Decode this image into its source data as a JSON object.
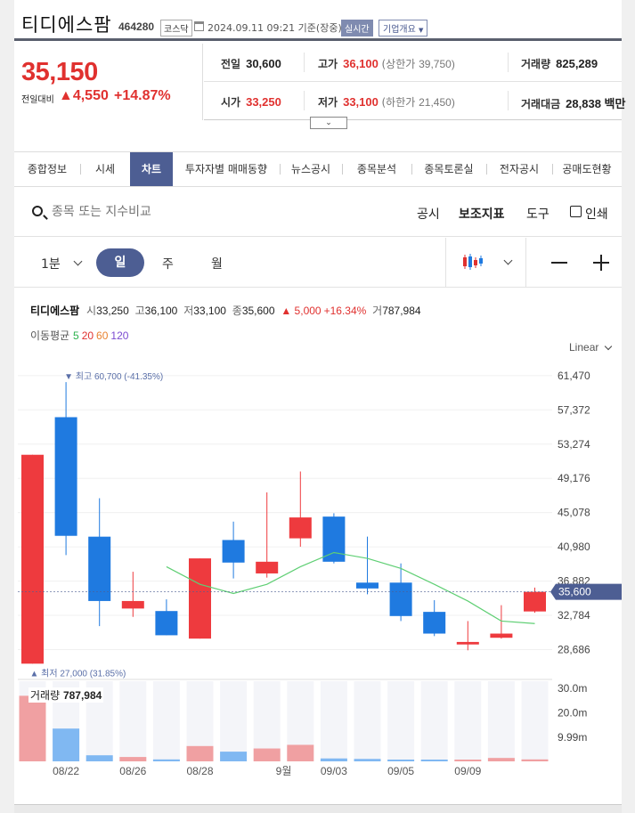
{
  "header": {
    "name": "티디에스팜",
    "code": "464280",
    "market": "코스닥",
    "datetime": "2024.09.11 09:21 기준(장중)",
    "realtime": "실시간",
    "overview": "기업개요"
  },
  "quote": {
    "price": "35,150",
    "change_label": "전일대비",
    "change": "▲4,550",
    "change_pct": "+14.87%"
  },
  "stats": {
    "prev": {
      "label": "전일",
      "value": "30,600"
    },
    "high": {
      "label": "고가",
      "value": "36,100",
      "sub_label": "(상한가",
      "sub_value": "39,750)"
    },
    "volume": {
      "label": "거래량",
      "value": "825,289"
    },
    "open": {
      "label": "시가",
      "value": "33,250"
    },
    "low": {
      "label": "저가",
      "value": "33,100",
      "sub_label": "(하한가",
      "sub_value": "21,450)"
    },
    "amount": {
      "label": "거래대금",
      "value": "28,838 백만"
    }
  },
  "tabs": [
    "종합정보",
    "시세",
    "차트",
    "투자자별 매매동향",
    "뉴스공시",
    "종목분석",
    "종목토론실",
    "전자공시",
    "공매도현황"
  ],
  "active_tab": 2,
  "search": {
    "placeholder": "종목 또는 지수비교"
  },
  "tools": {
    "notice": "공시",
    "indicator": "보조지표",
    "tool": "도구",
    "print": "인쇄"
  },
  "period": {
    "minute": "1분",
    "day": "일",
    "week": "주",
    "month": "월"
  },
  "chart_info": {
    "name": "티디에스팜",
    "open_k": "시",
    "open_v": "33,250",
    "high_k": "고",
    "high_v": "36,100",
    "low_k": "저",
    "low_v": "33,100",
    "close_k": "종",
    "close_v": "35,600",
    "change": "▲ 5,000",
    "change_pct": "+16.34%",
    "vol_k": "거",
    "vol_v": "787,984",
    "ma_label": "이동평균",
    "ma": [
      "5",
      "20",
      "60",
      "120"
    ],
    "ma_colors": [
      "#2bb24c",
      "#e0312f",
      "#e8822f",
      "#7b4bd1"
    ]
  },
  "scale_mode": "Linear",
  "volume_label": "거래량",
  "volume_value": "787,984",
  "colors": {
    "up": "#ee3a3e",
    "down": "#1f7ae0",
    "ma5": "#5fcf74",
    "accent": "#4d5e93"
  },
  "chart_data": {
    "type": "candlestick",
    "price_ticks": [
      "61,470",
      "57,372",
      "53,274",
      "49,176",
      "45,078",
      "40,980",
      "36,882",
      "32,784",
      "28,686"
    ],
    "volume_ticks": [
      "30.0m",
      "20.0m",
      "9.99m"
    ],
    "x_labels": [
      {
        "i": 1,
        "label": "08/22"
      },
      {
        "i": 3,
        "label": "08/26"
      },
      {
        "i": 5,
        "label": "08/28"
      },
      {
        "i": 7.5,
        "label": "9월"
      },
      {
        "i": 9,
        "label": "09/03"
      },
      {
        "i": 11,
        "label": "09/05"
      },
      {
        "i": 13,
        "label": "09/09"
      }
    ],
    "max_label": "▼ 최고 60,700 (-41.35%)",
    "min_label": "▲ 최저 27,000 (31.85%)",
    "current_label": "35,600",
    "current": 35600,
    "ylim": [
      26500,
      62200
    ],
    "candles": [
      {
        "o": 27000,
        "h": 52000,
        "l": 27000,
        "c": 52000,
        "v": 27.0
      },
      {
        "o": 56500,
        "h": 60700,
        "l": 40000,
        "c": 42300,
        "v": 13.5
      },
      {
        "o": 42200,
        "h": 46800,
        "l": 31500,
        "c": 34500,
        "v": 2.5
      },
      {
        "o": 33600,
        "h": 38000,
        "l": 32600,
        "c": 34500,
        "v": 1.8
      },
      {
        "o": 33300,
        "h": 34700,
        "l": 30400,
        "c": 30400,
        "v": 0.8
      },
      {
        "o": 30000,
        "h": 39600,
        "l": 30000,
        "c": 39600,
        "v": 6.3
      },
      {
        "o": 41800,
        "h": 44000,
        "l": 37200,
        "c": 39100,
        "v": 4.0
      },
      {
        "o": 37800,
        "h": 47500,
        "l": 37300,
        "c": 39200,
        "v": 5.3
      },
      {
        "o": 42000,
        "h": 50000,
        "l": 41000,
        "c": 44500,
        "v": 6.8
      },
      {
        "o": 44600,
        "h": 45000,
        "l": 39000,
        "c": 39200,
        "v": 1.2
      },
      {
        "o": 36700,
        "h": 42200,
        "l": 35300,
        "c": 36000,
        "v": 1.0
      },
      {
        "o": 36700,
        "h": 39000,
        "l": 32100,
        "c": 32700,
        "v": 0.6
      },
      {
        "o": 33200,
        "h": 34600,
        "l": 30300,
        "c": 30600,
        "v": 0.3
      },
      {
        "o": 29300,
        "h": 32100,
        "l": 28600,
        "c": 29600,
        "v": 0.2
      },
      {
        "o": 30100,
        "h": 34000,
        "l": 30000,
        "c": 30600,
        "v": 1.4
      },
      {
        "o": 33250,
        "h": 36100,
        "l": 33100,
        "c": 35600,
        "v": 0.8
      }
    ],
    "ma5": [
      null,
      null,
      null,
      null,
      38600,
      36500,
      35400,
      36500,
      38600,
      40300,
      39600,
      38400,
      36500,
      34500,
      32100,
      31800
    ]
  }
}
